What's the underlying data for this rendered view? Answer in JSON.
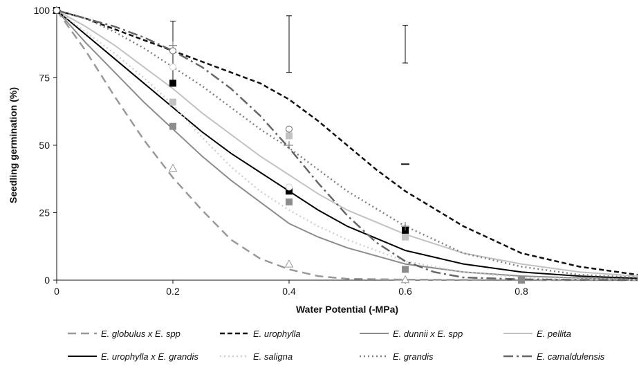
{
  "chart_data": {
    "type": "line",
    "title": "",
    "xlabel": "Water Potential (-MPa)",
    "ylabel": "Seedling germination (%)",
    "xlim": [
      0,
      1.0
    ],
    "ylim": [
      0,
      100
    ],
    "x_ticks": [
      "0",
      "0.2",
      "0.4",
      "0.6",
      "0.8"
    ],
    "y_ticks": [
      "0",
      "25",
      "50",
      "75",
      "100"
    ],
    "grid": false,
    "legend_position": "bottom",
    "series": [
      {
        "name": "E. globulus x E. spp",
        "color": "#999999",
        "dash": "12,7",
        "width": 2.5,
        "marker": "triangle-open",
        "curve_x": [
          0,
          0.05,
          0.1,
          0.15,
          0.2,
          0.25,
          0.3,
          0.35,
          0.4,
          0.45,
          0.5,
          0.6,
          0.7,
          0.8,
          0.9,
          1.0
        ],
        "curve_y": [
          100,
          85,
          68,
          52,
          38,
          26,
          15,
          8,
          4,
          1.5,
          0.5,
          0.2,
          0.1,
          0,
          0,
          0
        ],
        "points_x": [
          0,
          0.2,
          0.4,
          0.6
        ],
        "points_y": [
          100,
          41.5,
          6,
          0.2
        ]
      },
      {
        "name": "E. urophylla",
        "color": "#111111",
        "dash": "7,4",
        "width": 2.5,
        "marker": "dash",
        "curve_x": [
          0,
          0.05,
          0.1,
          0.15,
          0.2,
          0.25,
          0.3,
          0.35,
          0.4,
          0.45,
          0.5,
          0.55,
          0.6,
          0.7,
          0.8,
          0.9,
          1.0
        ],
        "curve_y": [
          100,
          97,
          93,
          89,
          85,
          81,
          77,
          73,
          67,
          59,
          50,
          41,
          33,
          20,
          10,
          5,
          2
        ],
        "points_x": [
          0,
          0.6
        ],
        "points_y": [
          100,
          43
        ],
        "error_x": [
          0.2,
          0.4,
          0.6
        ],
        "error_low": [
          73,
          77,
          80.5
        ],
        "error_high": [
          96,
          98,
          94.5
        ]
      },
      {
        "name": "E. dunnii x E. spp",
        "color": "#8c8c8c",
        "dash": "",
        "width": 2,
        "marker": "square-filled",
        "curve_x": [
          0,
          0.05,
          0.1,
          0.15,
          0.2,
          0.25,
          0.3,
          0.35,
          0.4,
          0.45,
          0.5,
          0.6,
          0.7,
          0.8,
          0.9,
          1.0
        ],
        "curve_y": [
          100,
          88,
          77,
          66,
          56,
          46,
          37,
          29,
          21,
          16,
          12,
          6,
          3,
          1.5,
          0.8,
          0.4
        ],
        "points_x": [
          0,
          0.2,
          0.4,
          0.6,
          0.8
        ],
        "points_y": [
          100,
          57,
          29,
          4,
          0
        ]
      },
      {
        "name": "E. pellita",
        "color": "#c2c2c2",
        "dash": "",
        "width": 2,
        "marker": "square-filled",
        "curve_x": [
          0,
          0.05,
          0.1,
          0.15,
          0.2,
          0.25,
          0.3,
          0.35,
          0.4,
          0.45,
          0.5,
          0.6,
          0.7,
          0.8,
          0.9,
          1.0
        ],
        "curve_y": [
          100,
          94,
          87,
          79,
          71,
          62,
          54,
          46,
          39,
          32,
          26,
          17,
          10,
          6,
          3,
          1.5
        ],
        "points_x": [
          0,
          0.2,
          0.4,
          0.6
        ],
        "points_y": [
          100,
          66,
          53.5,
          16
        ]
      },
      {
        "name": "E. urophylla x E. grandis",
        "color": "#000000",
        "dash": "",
        "width": 2,
        "marker": "square-filled",
        "curve_x": [
          0,
          0.05,
          0.1,
          0.15,
          0.2,
          0.25,
          0.3,
          0.35,
          0.4,
          0.45,
          0.5,
          0.6,
          0.7,
          0.8,
          0.9,
          1.0
        ],
        "curve_y": [
          100,
          91,
          82,
          73,
          64,
          55,
          47,
          40,
          33,
          26,
          20,
          11,
          6,
          3,
          1.5,
          0.7
        ],
        "points_x": [
          0,
          0.2,
          0.4,
          0.6
        ],
        "points_y": [
          100,
          73,
          33,
          18.5
        ]
      },
      {
        "name": "E. saligna",
        "color": "#cfcfcf",
        "dash": "2,4",
        "width": 2.5,
        "marker": "circle-open",
        "curve_x": [
          0,
          0.05,
          0.1,
          0.15,
          0.2,
          0.25,
          0.3,
          0.35,
          0.4,
          0.45,
          0.5,
          0.6,
          0.7,
          0.8,
          0.9,
          1.0
        ],
        "curve_y": [
          100,
          92,
          84,
          75,
          65,
          53,
          42,
          33,
          26,
          20,
          15,
          7,
          3,
          1,
          0.5,
          0.2
        ],
        "points_x": [
          0,
          0.2,
          0.4
        ],
        "points_y": [
          100,
          79,
          34.5
        ]
      },
      {
        "name": "E. grandis",
        "color": "#808080",
        "dash": "2,4",
        "width": 2.5,
        "marker": "plus",
        "curve_x": [
          0,
          0.05,
          0.1,
          0.15,
          0.2,
          0.25,
          0.3,
          0.35,
          0.4,
          0.45,
          0.5,
          0.6,
          0.7,
          0.8,
          0.9,
          1.0
        ],
        "curve_y": [
          100,
          97,
          92,
          86,
          79,
          72,
          64,
          56,
          49,
          41,
          33,
          20,
          10,
          5,
          2,
          1
        ],
        "points_x": [
          0,
          0.2,
          0.4,
          0.6
        ],
        "points_y": [
          100,
          87,
          50,
          20
        ]
      },
      {
        "name": "E. camaldulensis",
        "color": "#666666",
        "dash": "14,5,3,5",
        "width": 2.5,
        "marker": "circle-open",
        "curve_x": [
          0,
          0.05,
          0.1,
          0.15,
          0.2,
          0.25,
          0.3,
          0.35,
          0.4,
          0.45,
          0.5,
          0.55,
          0.6,
          0.65,
          0.7,
          0.8,
          0.9,
          1.0
        ],
        "curve_y": [
          100,
          97,
          94,
          90,
          85,
          79,
          71,
          61,
          49,
          36,
          24,
          14,
          7,
          3,
          1,
          0.3,
          0.1,
          0
        ],
        "points_x": [
          0,
          0.2,
          0.4
        ],
        "points_y": [
          100,
          85,
          56
        ]
      }
    ]
  }
}
